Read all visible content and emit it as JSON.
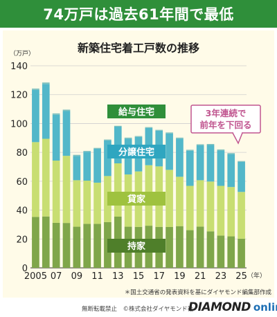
{
  "banner_title": "74万戸は過去61年間で最低",
  "note": "＊国土交通省の発表資料を基にダイヤモンド編集部作成",
  "footer": {
    "left_text": "無断転載禁止　©株式会社ダイヤモンド社",
    "logo_main": "DIAMOND",
    "logo_sub": "online"
  },
  "colors": {
    "banner": "#2f8f3a",
    "panel": "#fffbe8",
    "owned": "#7fa64a",
    "rental": "#c8de72",
    "condo": "#52b7c9",
    "built_for_sale": "#7fc1bf",
    "callout_border": "#c0558f",
    "callout_text": "#c0558f"
  },
  "chart_data": {
    "type": "bar",
    "title": "新築住宅着工戸数の推移",
    "ylabel": "（万戸）",
    "xlabel": "（年）",
    "ylim": [
      0,
      140
    ],
    "yticks": [
      0,
      20,
      40,
      60,
      80,
      100,
      120,
      140
    ],
    "grid": true,
    "categories": [
      "2005",
      "06",
      "07",
      "08",
      "09",
      "10",
      "11",
      "12",
      "13",
      "14",
      "15",
      "16",
      "17",
      "18",
      "19",
      "20",
      "21",
      "22",
      "23",
      "24",
      "25"
    ],
    "x_tick_labels": [
      "2005",
      "",
      "07",
      "",
      "09",
      "",
      "11",
      "",
      "13",
      "",
      "15",
      "",
      "17",
      "",
      "19",
      "",
      "21",
      "",
      "23",
      "",
      "25"
    ],
    "series": [
      {
        "name": "持家",
        "values": [
          35.3,
          35.6,
          31.2,
          31.1,
          28.5,
          30.5,
          30.5,
          31.7,
          35.5,
          28.5,
          28.4,
          29.2,
          28.4,
          28.3,
          28.9,
          26.1,
          28.6,
          25.3,
          22.4,
          21.8,
          20.2
        ]
      },
      {
        "name": "貸家",
        "values": [
          51.8,
          53.8,
          43.1,
          46.5,
          32.2,
          29.9,
          28.5,
          31.9,
          36.9,
          36.2,
          38.4,
          41.9,
          41.9,
          39.6,
          34.2,
          30.7,
          32.1,
          34.5,
          34.4,
          34.2,
          32.4
        ]
      },
      {
        "name": "分譲住宅",
        "values": [
          36.2,
          38.0,
          31.8,
          31.0,
          16.8,
          20.0,
          23.5,
          24.7,
          25.4,
          24.8,
          23.9,
          25.8,
          24.7,
          25.2,
          26.4,
          24.3,
          24.2,
          25.3,
          24.5,
          22.8,
          20.8
        ]
      },
      {
        "name": "給与住宅",
        "values": [
          0.9,
          1.0,
          0.9,
          1.0,
          0.8,
          0.6,
          0.6,
          0.6,
          0.6,
          0.7,
          0.6,
          0.6,
          0.6,
          0.7,
          0.7,
          0.7,
          0.7,
          0.7,
          0.7,
          0.7,
          0.6
        ]
      }
    ],
    "series_labels": {
      "owned": "持家",
      "rental": "貸家",
      "condo": "分譲住宅",
      "company": "給与住宅"
    },
    "annotation": {
      "line1": "3年連続で",
      "line2": "前年を下回る"
    }
  }
}
